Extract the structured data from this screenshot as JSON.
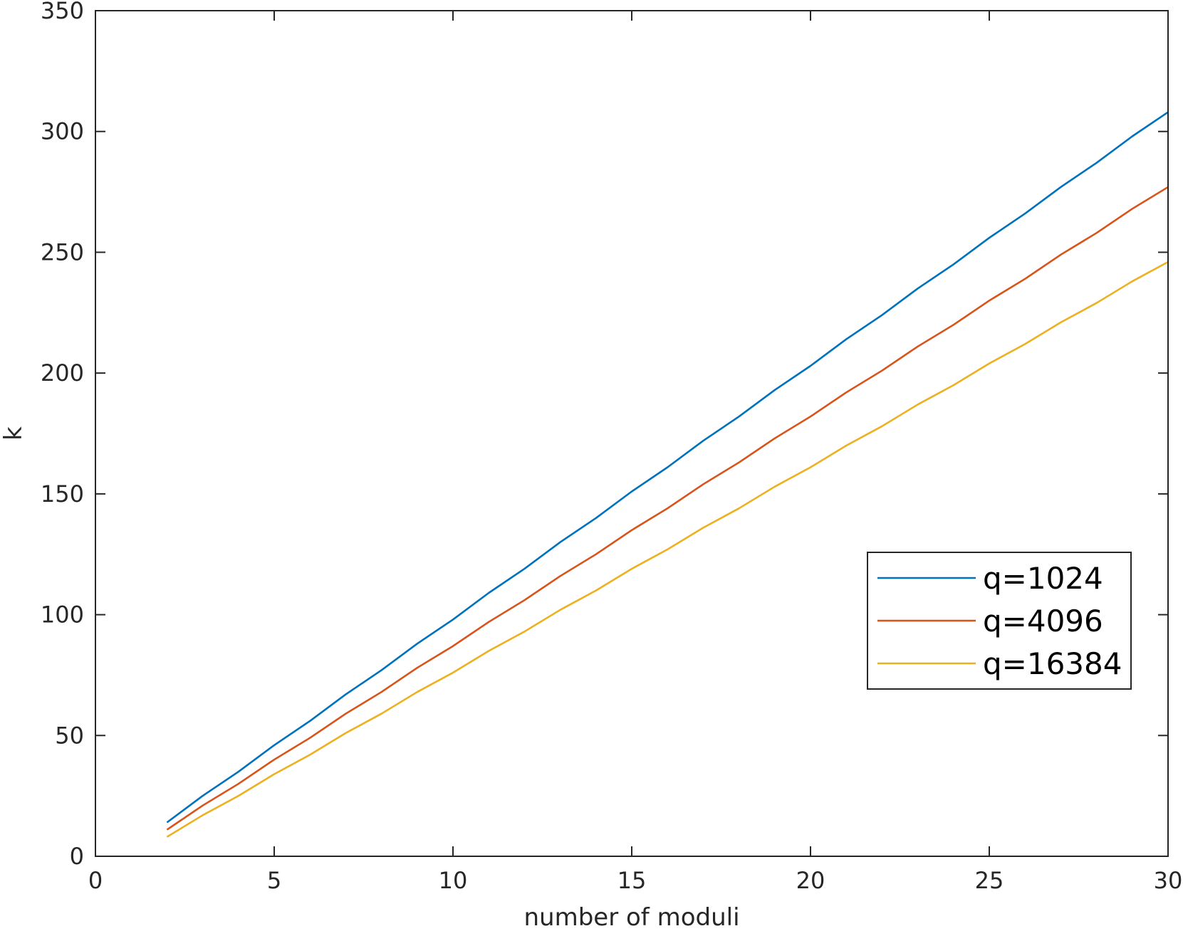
{
  "chart_data": {
    "type": "line",
    "title": "",
    "xlabel": "number of moduli",
    "ylabel": "k",
    "xlim": [
      0,
      30
    ],
    "ylim": [
      0,
      350
    ],
    "xticks": [
      "0",
      "5",
      "10",
      "15",
      "20",
      "25",
      "30"
    ],
    "yticks": [
      "0",
      "50",
      "100",
      "150",
      "200",
      "250",
      "300",
      "350"
    ],
    "grid": false,
    "legend_position": "right",
    "x": [
      2,
      3,
      4,
      5,
      6,
      7,
      8,
      9,
      10,
      11,
      12,
      13,
      14,
      15,
      16,
      17,
      18,
      19,
      20,
      21,
      22,
      23,
      24,
      25,
      26,
      27,
      28,
      29,
      30
    ],
    "series": [
      {
        "name": "q=1024",
        "color": "#0072BD",
        "values": [
          14,
          25,
          35,
          46,
          56,
          67,
          77,
          88,
          98,
          109,
          119,
          130,
          140,
          151,
          161,
          172,
          182,
          193,
          203,
          214,
          224,
          235,
          245,
          256,
          266,
          277,
          287,
          298,
          308
        ]
      },
      {
        "name": "q=4096",
        "color": "#D95319",
        "values": [
          11,
          21,
          30,
          40,
          49,
          59,
          68,
          78,
          87,
          97,
          106,
          116,
          125,
          135,
          144,
          154,
          163,
          173,
          182,
          192,
          201,
          211,
          220,
          230,
          239,
          249,
          258,
          268,
          277
        ]
      },
      {
        "name": "q=16384",
        "color": "#EDB120",
        "values": [
          8,
          17,
          25,
          34,
          42,
          51,
          59,
          68,
          76,
          85,
          93,
          102,
          110,
          119,
          127,
          136,
          144,
          153,
          161,
          170,
          178,
          187,
          195,
          204,
          212,
          221,
          229,
          238,
          246
        ]
      }
    ]
  }
}
